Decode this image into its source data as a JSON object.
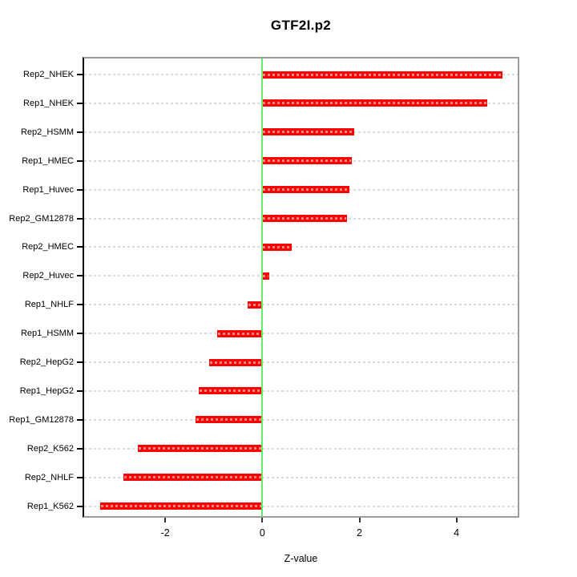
{
  "chart_data": {
    "type": "bar",
    "orientation": "horizontal",
    "title": "GTF2I.p2",
    "xlabel": "Z-value",
    "ylabel": "",
    "categories": [
      "Rep2_NHEK",
      "Rep1_NHEK",
      "Rep2_HSMM",
      "Rep1_HMEC",
      "Rep1_Huvec",
      "Rep2_GM12878",
      "Rep2_HMEC",
      "Rep2_Huvec",
      "Rep1_NHLF",
      "Rep1_HSMM",
      "Rep2_HepG2",
      "Rep1_HepG2",
      "Rep1_GM12878",
      "Rep2_K562",
      "Rep2_NHLF",
      "Rep1_K562"
    ],
    "values": [
      4.94,
      4.63,
      1.9,
      1.85,
      1.8,
      1.75,
      0.61,
      0.15,
      -0.3,
      -0.93,
      -1.09,
      -1.31,
      -1.38,
      -2.56,
      -2.86,
      -3.34
    ],
    "xlim": [
      -3.67,
      5.26
    ],
    "xticks": [
      -2,
      0,
      2,
      4
    ],
    "xtick_labels": [
      "-2",
      "0",
      "2",
      "4"
    ],
    "grid": true,
    "legend": null,
    "colors": {
      "bar": "#ff0000",
      "bar_dash": "rgba(255,255,255,0.55)",
      "zero_line": "#66ee66",
      "gridline": "#d9d9d9",
      "box_border": "#9c9c9c",
      "y_axis_line": "#000000",
      "text": "#000000",
      "background": "#ffffff"
    }
  }
}
